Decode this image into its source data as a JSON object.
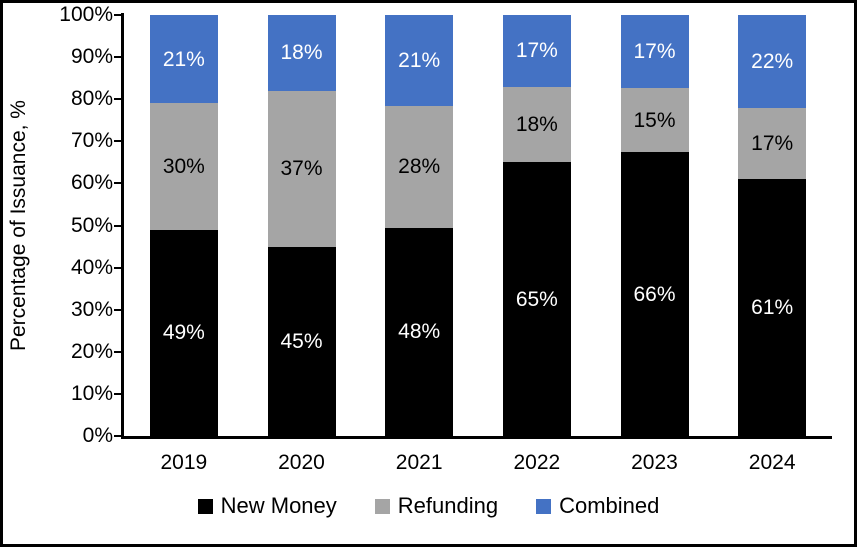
{
  "chart_data": {
    "type": "bar",
    "stacked": true,
    "orientation": "vertical",
    "title": "",
    "xlabel": "",
    "ylabel": "Percentage of Issuance, %",
    "ylim": [
      0,
      100
    ],
    "y_ticks": [
      "0%",
      "10%",
      "20%",
      "30%",
      "40%",
      "50%",
      "60%",
      "70%",
      "80%",
      "90%",
      "100%"
    ],
    "grid": false,
    "legend_position": "bottom",
    "categories": [
      "2019",
      "2020",
      "2021",
      "2022",
      "2023",
      "2024"
    ],
    "series": [
      {
        "name": "New Money",
        "color": "#000000",
        "label_color": "#ffffff",
        "values": [
          49,
          45,
          48,
          65,
          66,
          61
        ],
        "labels": [
          "49%",
          "45%",
          "48%",
          "65%",
          "66%",
          "61%"
        ]
      },
      {
        "name": "Refunding",
        "color": "#a5a5a5",
        "label_color": "#000000",
        "values": [
          30,
          37,
          28,
          18,
          15,
          17
        ],
        "labels": [
          "30%",
          "37%",
          "28%",
          "18%",
          "15%",
          "17%"
        ]
      },
      {
        "name": "Combined",
        "color": "#4472c4",
        "label_color": "#ffffff",
        "values": [
          21,
          18,
          21,
          17,
          17,
          22
        ],
        "labels": [
          "21%",
          "18%",
          "21%",
          "17%",
          "17%",
          "22%"
        ]
      }
    ]
  },
  "colors": {
    "axis": "#000000",
    "background": "#ffffff",
    "border": "#000000"
  }
}
